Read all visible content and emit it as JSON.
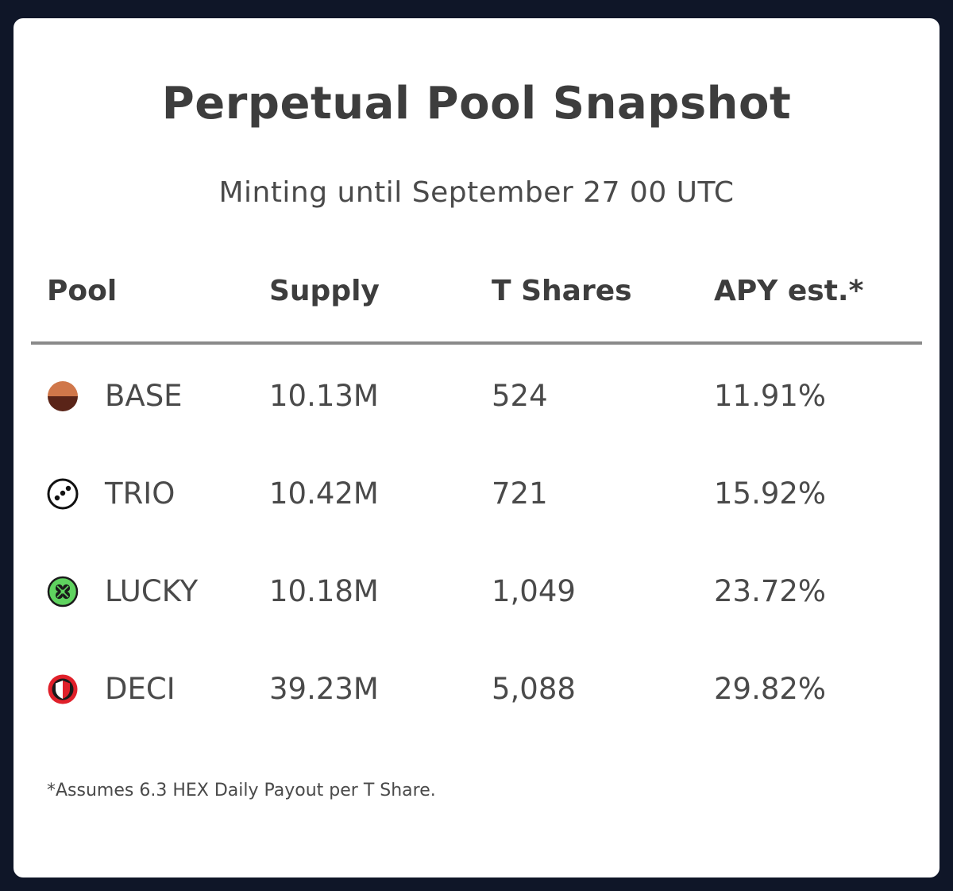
{
  "title": "Perpetual Pool Snapshot",
  "subtitle": "Minting until September 27 00 UTC",
  "table": {
    "headers": [
      "Pool",
      "Supply",
      "T Shares",
      "APY est.*"
    ],
    "rows": [
      {
        "icon": "base-pool-icon",
        "pool": "BASE",
        "supply": "10.13M",
        "t_shares": "524",
        "apy": "11.91%"
      },
      {
        "icon": "trio-pool-icon",
        "pool": "TRIO",
        "supply": "10.42M",
        "t_shares": "721",
        "apy": "15.92%"
      },
      {
        "icon": "lucky-pool-icon",
        "pool": "LUCKY",
        "supply": "10.18M",
        "t_shares": "1,049",
        "apy": "23.72%"
      },
      {
        "icon": "deci-pool-icon",
        "pool": "DECI",
        "supply": "39.23M",
        "t_shares": "5,088",
        "apy": "29.82%"
      }
    ]
  },
  "footnote": "*Assumes 6.3 HEX Daily Payout per T Share.",
  "colors": {
    "background": "#0f1628",
    "card": "#ffffff",
    "text": "#3d3d3d",
    "divider": "#8a8a8a",
    "base_top": "#d0774a",
    "base_bottom": "#5a2418",
    "lucky_green": "#5fd35f",
    "deci_red": "#e0202a"
  }
}
